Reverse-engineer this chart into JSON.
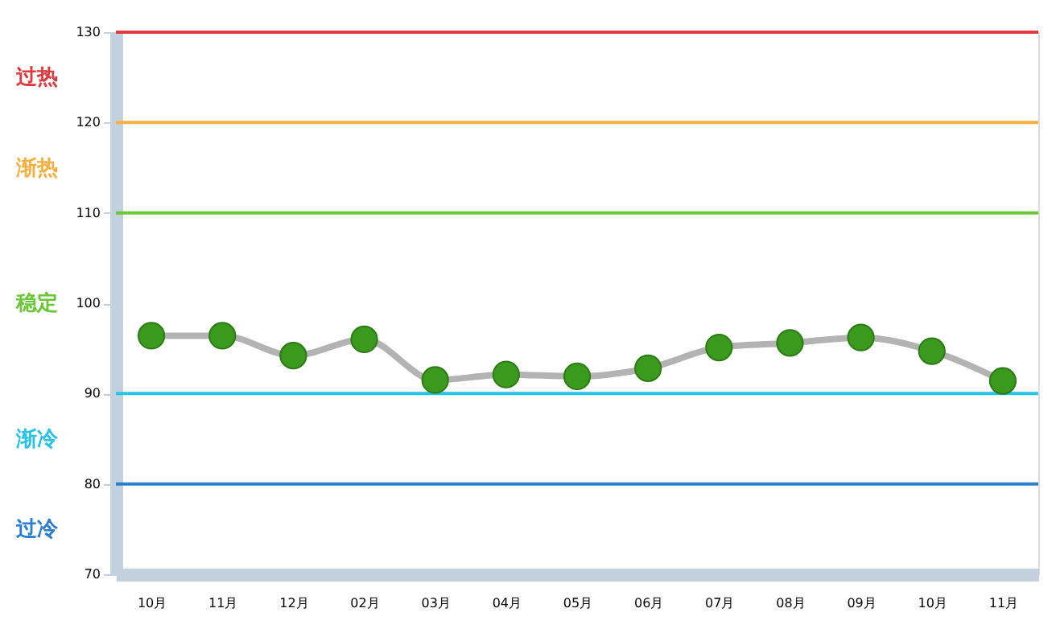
{
  "chart_data": {
    "type": "line",
    "categories": [
      "10月",
      "11月",
      "12月",
      "02月",
      "03月",
      "04月",
      "05月",
      "06月",
      "07月",
      "08月",
      "09月",
      "10月",
      "11月"
    ],
    "series": [
      {
        "color": "#3a9a1e",
        "values": [
          96.4,
          96.4,
          94.2,
          96.0,
          91.5,
          92.1,
          91.9,
          92.8,
          95.1,
          95.6,
          96.2,
          94.7,
          91.4
        ]
      }
    ],
    "ylim": [
      70,
      130
    ],
    "yticks": [
      70,
      80,
      90,
      100,
      110,
      120,
      130
    ],
    "marker": "circle",
    "grid": false,
    "ref_lines": [
      {
        "axis": "y",
        "value": 130,
        "color": "#e0393e"
      },
      {
        "axis": "y",
        "value": 120,
        "color": "#f5b041"
      },
      {
        "axis": "y",
        "value": 110,
        "color": "#6cc63a"
      },
      {
        "axis": "y",
        "value": 90,
        "color": "#29c3e8"
      },
      {
        "axis": "y",
        "value": 80,
        "color": "#2a7fd0"
      }
    ],
    "annotations": [
      "过热",
      "渐热",
      "稳定",
      "渐冷",
      "过冷"
    ]
  }
}
